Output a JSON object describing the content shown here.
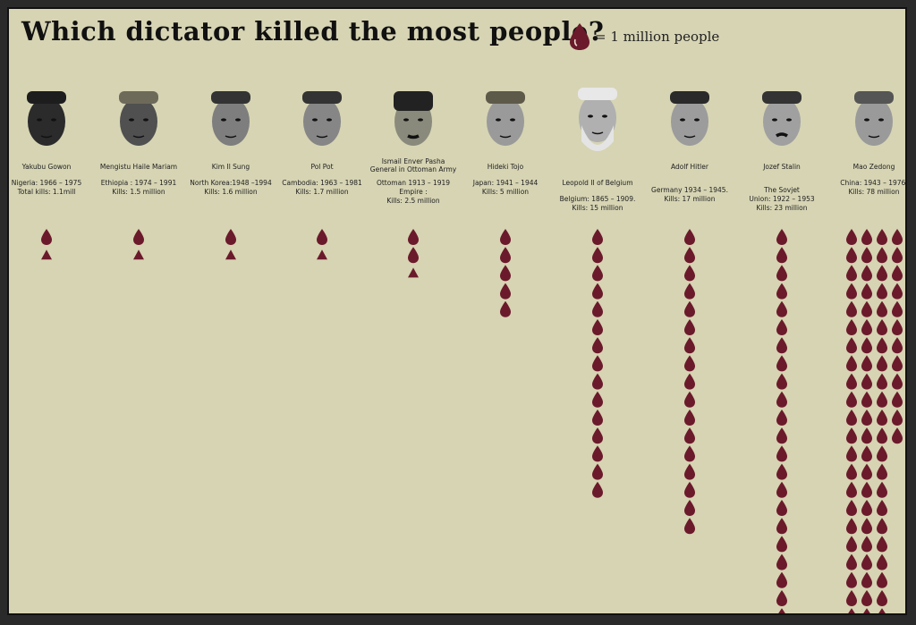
{
  "title": "Which dictator killed the most people?",
  "legend": {
    "label": "= 1 million people"
  },
  "colors": {
    "drop": "#6b1a2b",
    "background": "#d6d4b3",
    "text": "#222222"
  },
  "chart_data": {
    "type": "bar",
    "title": "Which dictator killed the most people?",
    "unit": "1 million people",
    "categories": [
      "Yakubu Gowon",
      "Mengistu Haile Mariam",
      "Kim Il Sung",
      "Pol Pot",
      "Ismail Enver Pasha General in Ottoman Army",
      "Hideki Tojo",
      "Leopold II of Belgium",
      "Adolf Hitler",
      "Jozef Stalin",
      "Mao Zedong"
    ],
    "values": [
      1.1,
      1.5,
      1.6,
      1.7,
      2.5,
      5,
      15,
      17,
      23,
      78
    ],
    "dictators": [
      {
        "name": "Yakubu Gowon",
        "info": "Nigeria: 1966 – 1975\nTotal kills: 1.1mill",
        "kills": 1.1
      },
      {
        "name": "Mengistu Haile Mariam",
        "info": "Ethiopia : 1974 – 1991\nKills: 1.5 million",
        "kills": 1.5
      },
      {
        "name": "Kim Il Sung",
        "info": "North Korea:1948 –1994\nKills: 1.6 million",
        "kills": 1.6
      },
      {
        "name": "Pol Pot",
        "info": "Cambodia: 1963 – 1981\nKills: 1.7 million",
        "kills": 1.7
      },
      {
        "name": "Ismail Enver Pasha\nGeneral in Ottoman Army",
        "info": "Ottoman     1913 – 1919\nEmpire :\nKills: 2.5 million",
        "kills": 2.5
      },
      {
        "name": "Hideki Tojo",
        "info": "Japan: 1941 – 1944\nKills: 5 million",
        "kills": 5
      },
      {
        "name": "Leopold II of Belgium",
        "info": "Belgium: 1865 – 1909.\nKills: 15 million",
        "kills": 15
      },
      {
        "name": "Adolf Hitler",
        "info": "Germany 1934 – 1945.\nKills: 17 million",
        "kills": 17
      },
      {
        "name": "Jozef Stalin",
        "info": "The Sovjet\nUnion: 1922 – 1953\nKills: 23 million",
        "kills": 23
      },
      {
        "name": "Mao Zedong",
        "info": "China: 1943 – 1976.\nKills: 78 million",
        "kills": 78
      }
    ]
  }
}
